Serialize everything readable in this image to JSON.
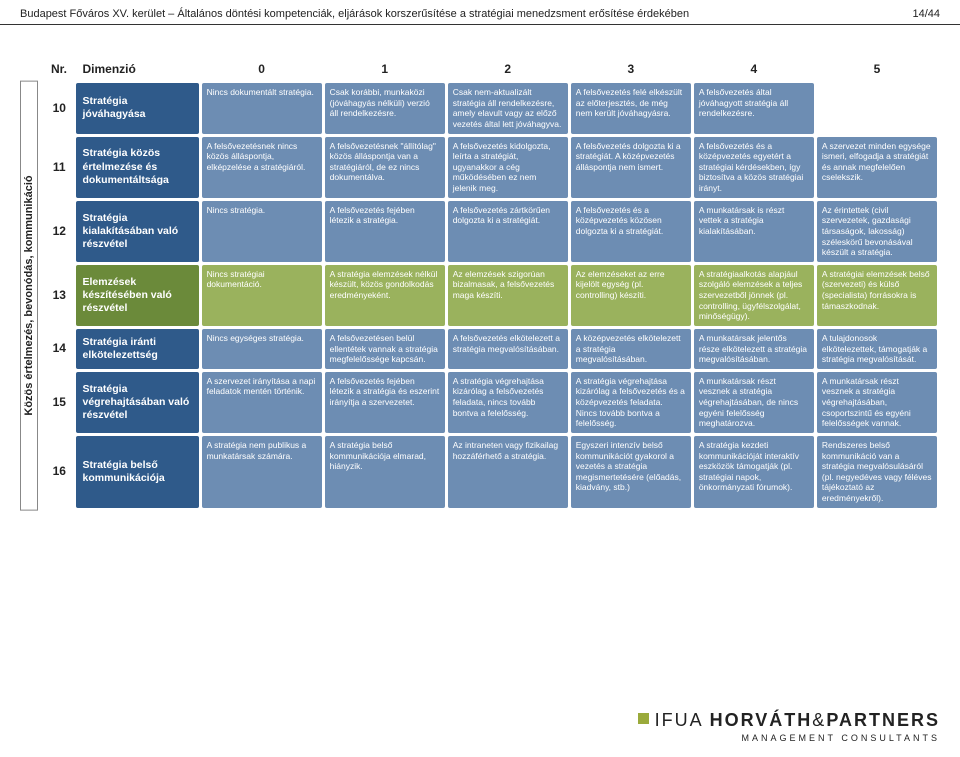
{
  "header": {
    "left": "Budapest Főváros XV. kerület – Általános döntési kompetenciák, eljárások korszerűsítése a stratégiai menedzsment erősítése érdekében",
    "right": "14/44"
  },
  "table": {
    "side_label": "Közös értelmezés, bevonódás, kommunikáció",
    "col_widths": {
      "nr": 28,
      "dim": 120,
      "cell": 118
    },
    "columns": [
      "Nr.",
      "Dimenzió",
      "0",
      "1",
      "2",
      "3",
      "4",
      "5"
    ],
    "dim_colors": {
      "blue": "#2f5a8a",
      "green": "#6b8a3a"
    },
    "cell_colors": {
      "blue": "#6d8db3",
      "green": "#9ab25d"
    },
    "rows": [
      {
        "nr": "10",
        "dim": "Stratégia jóváhagyása",
        "color": "blue",
        "cells": [
          "Nincs dokumentált stratégia.",
          "Csak korábbi, munkaközi (jóváhagyás nélküli) verzió áll rendelkezésre.",
          "Csak nem-aktualizált stratégia áll rendelkezésre, amely elavult vagy az előző vezetés által lett jóváhagyva.",
          "A felsővezetés felé elkészült az előterjesztés, de még nem került jóváhagyásra.",
          "A felsővezetés által jóváhagyott stratégia áll rendelkezésre.",
          ""
        ]
      },
      {
        "nr": "11",
        "dim": "Stratégia közös értelmezése és dokumentáltsága",
        "color": "blue",
        "cells": [
          "A felsővezetésnek nincs közös álláspontja, elképzelése a stratégiáról.",
          "A felsővezetésnek \"állítólag\" közös álláspontja van a stratégiáról, de ez nincs dokumentálva.",
          "A felsővezetés kidolgozta, leírta a stratégiát, ugyanakkor a cég működésében ez nem jelenik meg.",
          "A felsővezetés dolgozta ki a stratégiát. A középvezetés álláspontja nem ismert.",
          "A felsővezetés és a középvezetés egyetért a stratégiai kérdésekben, így biztosítva a közös stratégiai irányt.",
          "A szervezet minden egysége ismeri, elfogadja a stratégiát és annak megfelelően cselekszik."
        ]
      },
      {
        "nr": "12",
        "dim": "Stratégia kialakításában való részvétel",
        "color": "blue",
        "cells": [
          "Nincs stratégia.",
          "A felsővezetés fejében létezik a stratégia.",
          "A felsővezetés zártkörűen dolgozta ki a stratégiát.",
          "A felsővezetés és a középvezetés közösen dolgozta ki a stratégiát.",
          "A munkatársak is részt vettek a stratégia kialakításában.",
          "Az érintettek (civil szervezetek, gazdasági társaságok, lakosság) széleskörű bevonásával készült a stratégia."
        ]
      },
      {
        "nr": "13",
        "dim": "Elemzések készítésében való részvétel",
        "color": "green",
        "cells": [
          "Nincs stratégiai dokumentáció.",
          "A stratégia elemzések nélkül készült, közös gondolkodás eredményeként.",
          "Az elemzések szigorúan bizalmasak, a felsővezetés maga készíti.",
          "Az elemzéseket az erre kijelölt egység (pl. controlling) készíti.",
          "A stratégiaalkotás alapjául szolgáló elemzések a teljes szervezetből jönnek (pl. controlling, ügyfélszolgálat, minőségügy).",
          "A stratégiai elemzések belső (szervezeti) és külső (specialista) forrásokra is támaszkodnak."
        ]
      },
      {
        "nr": "14",
        "dim": "Stratégia iránti elkötelezettség",
        "color": "blue",
        "cells": [
          "Nincs egységes stratégia.",
          "A felsővezetésen belül ellentétek vannak a stratégia megfelelőssége kapcsán.",
          "A felsővezetés elkötelezett a stratégia megvalósításában.",
          "A középvezetés elkötelezett a stratégia megvalósításában.",
          "A munkatársak jelentős része elkötelezett a stratégia megvalósításában.",
          "A tulajdonosok elkötelezettek, támogatják a stratégia megvalósítását."
        ]
      },
      {
        "nr": "15",
        "dim": "Stratégia végrehajtásában való részvétel",
        "color": "blue",
        "cells": [
          "A szervezet irányítása a napi feladatok mentén történik.",
          "A felsővezetés fejében létezik a stratégia és eszerint irányítja a szervezetet.",
          "A stratégia végrehajtása kizárólag a felsővezetés feladata, nincs tovább bontva a felelősség.",
          "A stratégia végrehajtása kizárólag a felsővezetés és a középvezetés feladata. Nincs tovább bontva a felelősség.",
          "A munkatársak részt vesznek a stratégia végrehajtásában, de nincs egyéni felelősség meghatározva.",
          "A munkatársak részt vesznek a stratégia végrehajtásában, csoportszintű és egyéni felelősségek vannak."
        ]
      },
      {
        "nr": "16",
        "dim": "Stratégia belső kommunikációja",
        "color": "blue",
        "cells": [
          "A stratégia nem publikus a munkatársak számára.",
          "A stratégia belső kommunikációja elmarad, hiányzik.",
          "Az intraneten vagy fizikailag hozzáférhető a stratégia.",
          "Egyszeri intenzív belső kommunikációt gyakorol a vezetés a stratégia megismertetésére (előadás, kiadvány, stb.)",
          "A stratégia kezdeti kommunikációját interaktív eszközök támogatják (pl. stratégiai napok, önkormányzati fórumok).",
          "Rendszeres belső kommunikáció van a stratégia megvalósulásáról (pl. negyedéves vagy féléves tájékoztató az eredményekről)."
        ]
      }
    ]
  },
  "footer": {
    "brand1a": "IFUA ",
    "brand1b": "HORVÁTH",
    "brand1c": "&",
    "brand1d": "PARTNERS",
    "brand2": "MANAGEMENT CONSULTANTS"
  }
}
